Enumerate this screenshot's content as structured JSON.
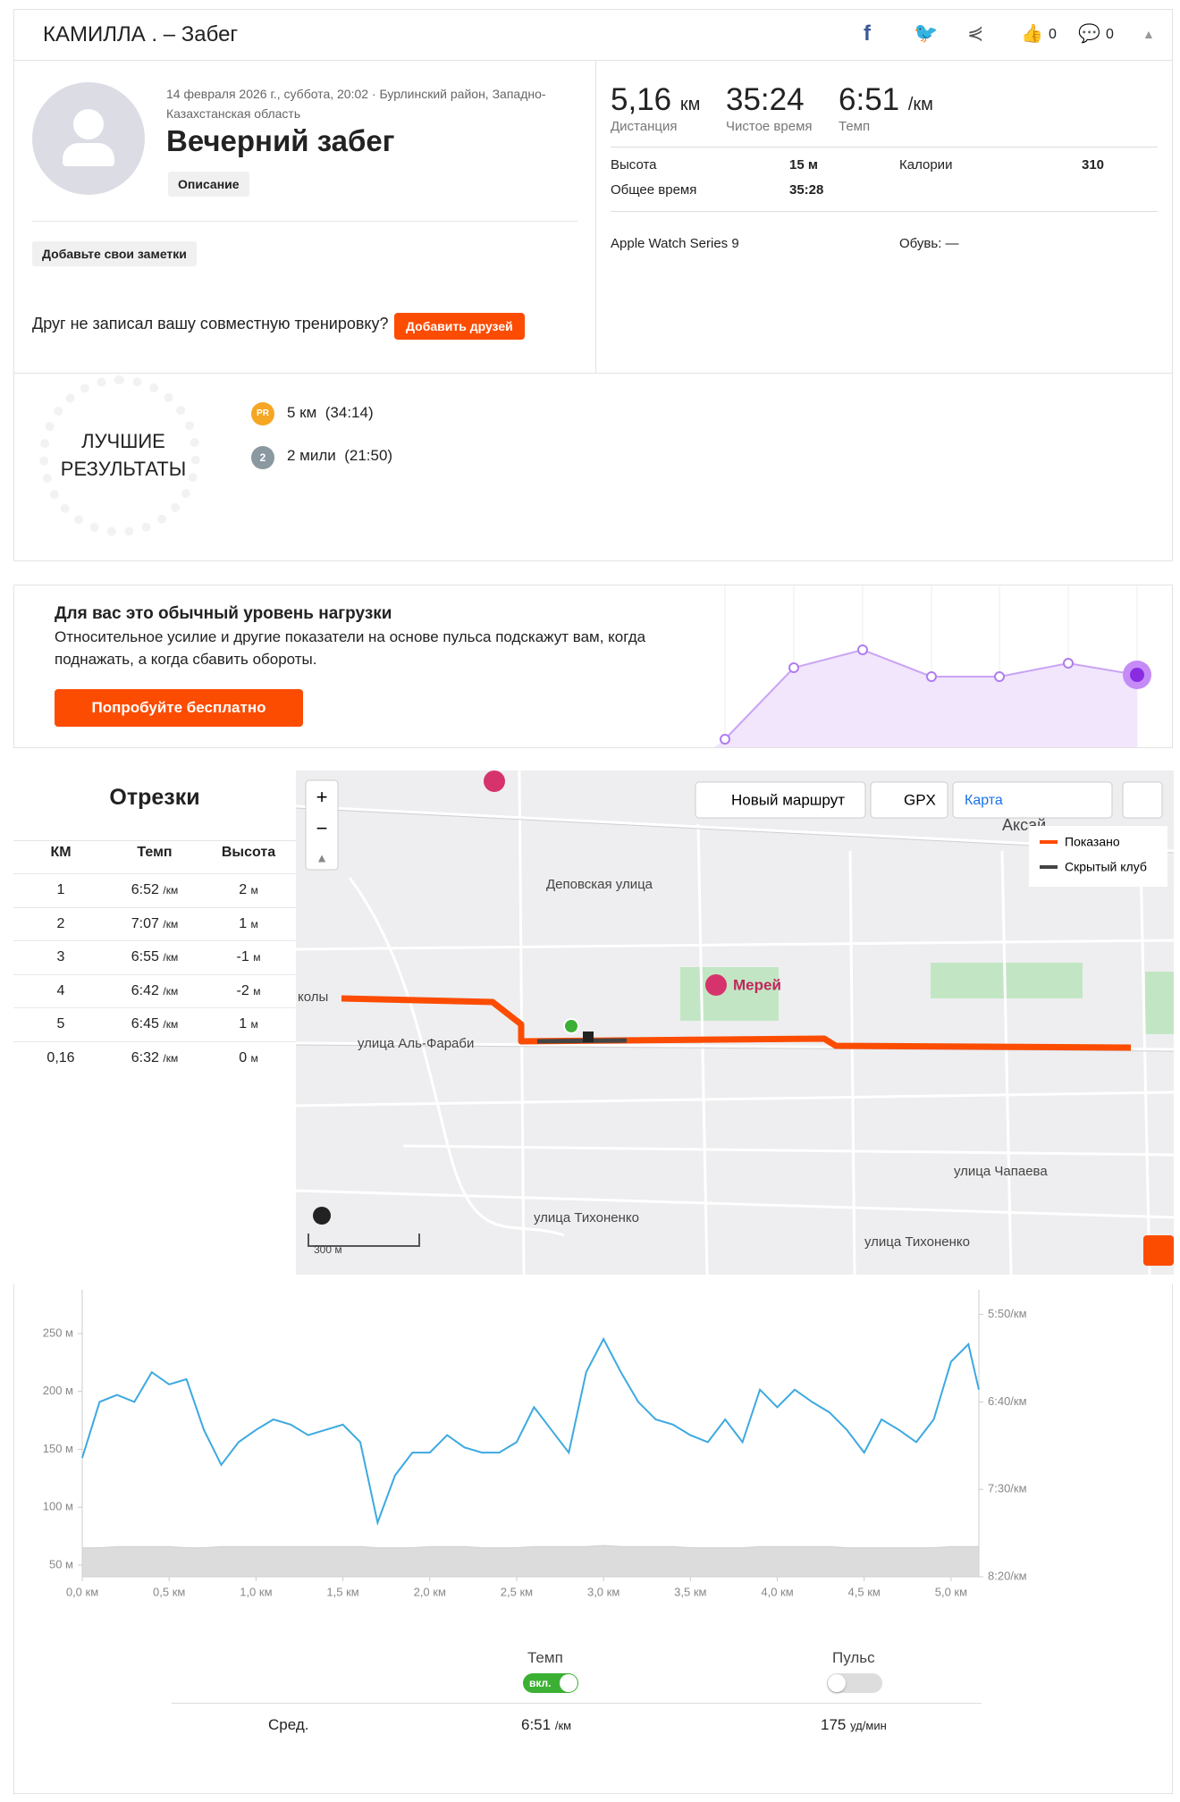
{
  "header": {
    "title": "КАМИЛЛА . – Забег",
    "kudos": "0",
    "comments": "0"
  },
  "activity": {
    "date_location": "14 февраля 2026 г., суббота, 20:02 · Бурлинский район, Западно-Казахстанская область",
    "title": "Вечерний забег",
    "description_button": "Описание",
    "notes_button": "Добавьте свои заметки",
    "friend_prompt": "Друг не записал вашу совместную тренировку?",
    "add_friends_button": "Добавить друзей"
  },
  "stats": {
    "primary": [
      {
        "value": "5,16",
        "unit": "км",
        "label": "Дистанция"
      },
      {
        "value": "35:24",
        "label": "Чистое время"
      },
      {
        "value": "6:51",
        "unit": "/км",
        "label": "Темп"
      }
    ],
    "secondary": [
      {
        "label": "Высота",
        "value": "15 м"
      },
      {
        "label": "Калории",
        "value": "310"
      },
      {
        "label": "Общее время",
        "value": "35:28"
      }
    ],
    "device": "Apple Watch Series 9",
    "shoes": "Обувь: —"
  },
  "best_efforts": {
    "title": "ЛУЧШИЕ РЕЗУЛЬТАТЫ",
    "items": [
      {
        "badge": "PR",
        "text": "5 км  (34:14)"
      },
      {
        "badge": "2",
        "text": "2 мили  (21:50)"
      }
    ]
  },
  "upsell": {
    "title": "Для вас это обычный уровень нагрузки",
    "text": "Относительное усилие и другие показатели на основе пульса подскажут вам, когда поднажать, а когда сбавить обороты.",
    "button": "Попробуйте бесплатно"
  },
  "splits": {
    "title": "Отрезки",
    "headers": [
      "КМ",
      "Темп",
      "Высота"
    ],
    "pace_unit": "/км",
    "elev_unit": "м",
    "rows": [
      {
        "km": "1",
        "pace": "6:52",
        "elev": "2"
      },
      {
        "km": "2",
        "pace": "7:07",
        "elev": "1"
      },
      {
        "km": "3",
        "pace": "6:55",
        "elev": "-1"
      },
      {
        "km": "4",
        "pace": "6:42",
        "elev": "-2"
      },
      {
        "km": "5",
        "pace": "6:45",
        "elev": "1"
      },
      {
        "km": "0,16",
        "pace": "6:32",
        "elev": "0"
      }
    ]
  },
  "map": {
    "buttons": {
      "new_route": "Новый маршрут",
      "gpx": "GPX",
      "layer": "Карта"
    },
    "legend": [
      "Показано",
      "Скрытый клуб"
    ],
    "scale": "300 м",
    "labels": [
      "Аксай",
      "Деповская улица",
      "Мерей",
      "улица Аль-Фараби",
      "колы",
      "улица Чапаева",
      "улица Тихоненко",
      "улица Тихоненко"
    ]
  },
  "chart_data": {
    "type": "line",
    "x": [
      0,
      0.1,
      0.2,
      0.3,
      0.4,
      0.5,
      0.6,
      0.7,
      0.8,
      0.9,
      1.0,
      1.1,
      1.2,
      1.3,
      1.4,
      1.5,
      1.6,
      1.7,
      1.8,
      1.9,
      2.0,
      2.1,
      2.2,
      2.3,
      2.4,
      2.5,
      2.6,
      2.7,
      2.8,
      2.9,
      3.0,
      3.1,
      3.2,
      3.3,
      3.4,
      3.5,
      3.6,
      3.7,
      3.8,
      3.9,
      4.0,
      4.1,
      4.2,
      4.3,
      4.4,
      4.5,
      4.6,
      4.7,
      4.8,
      4.9,
      5.0,
      5.1,
      5.16
    ],
    "series": [
      {
        "name": "Темп",
        "color": "#3da9e0",
        "axis": "y2",
        "values": [
          432,
          400,
          396,
          400,
          383,
          390,
          387,
          416,
          436,
          423,
          416,
          410,
          413,
          419,
          416,
          413,
          423,
          469,
          442,
          429,
          429,
          419,
          426,
          429,
          429,
          423,
          403,
          416,
          429,
          383,
          364,
          383,
          400,
          410,
          413,
          419,
          423,
          410,
          423,
          393,
          403,
          393,
          400,
          406,
          416,
          429,
          410,
          416,
          423,
          410,
          377,
          367,
          393
        ]
      },
      {
        "color": "#dcdcdc",
        "kind": "area",
        "values": [
          65,
          65,
          66,
          66,
          66,
          66,
          65,
          65,
          66,
          66,
          66,
          66,
          66,
          66,
          66,
          66,
          66,
          65,
          65,
          65,
          66,
          66,
          66,
          65,
          65,
          65,
          66,
          66,
          66,
          66,
          67,
          66,
          66,
          66,
          66,
          65,
          65,
          65,
          65,
          66,
          66,
          66,
          66,
          66,
          65,
          65,
          65,
          65,
          65,
          65,
          66,
          66,
          66
        ]
      }
    ],
    "xlim": [
      0,
      5.16
    ],
    "xticks": [
      {
        "value": 0,
        "label": "0,0 км"
      },
      {
        "value": 0.5,
        "label": "0,5 км"
      },
      {
        "value": 1,
        "label": "1,0 км"
      },
      {
        "value": 1.5,
        "label": "1,5 км"
      },
      {
        "value": 2,
        "label": "2,0 км"
      },
      {
        "value": 2.5,
        "label": "2,5 км"
      },
      {
        "value": 3,
        "label": "3,0 км"
      },
      {
        "value": 3.5,
        "label": "3,5 км"
      },
      {
        "value": 4,
        "label": "4,0 км"
      },
      {
        "value": 4.5,
        "label": "4,5 км"
      },
      {
        "value": 5,
        "label": "5,0 км"
      }
    ],
    "ylim": [
      40,
      280
    ],
    "yticks": [
      {
        "value": 50,
        "label": "50 м"
      },
      {
        "value": 100,
        "label": "100 м"
      },
      {
        "value": 150,
        "label": "150 м"
      },
      {
        "value": 200,
        "label": "200 м"
      },
      {
        "value": 250,
        "label": "250 м"
      }
    ],
    "y2lim": [
      500,
      341
    ],
    "y2ticks": [
      {
        "value": 350,
        "label": "5:50/км"
      },
      {
        "value": 400,
        "label": "6:40/км"
      },
      {
        "value": 450,
        "label": "7:30/км"
      },
      {
        "value": 500,
        "label": "8:20/км"
      }
    ]
  },
  "summary": {
    "pulse_label": "Пульс",
    "toggle_on": "вкл.",
    "avg_label": "Сред.",
    "pace": "6:51",
    "pace_unit": "/км",
    "hr": "175",
    "hr_unit": "уд/мин"
  }
}
